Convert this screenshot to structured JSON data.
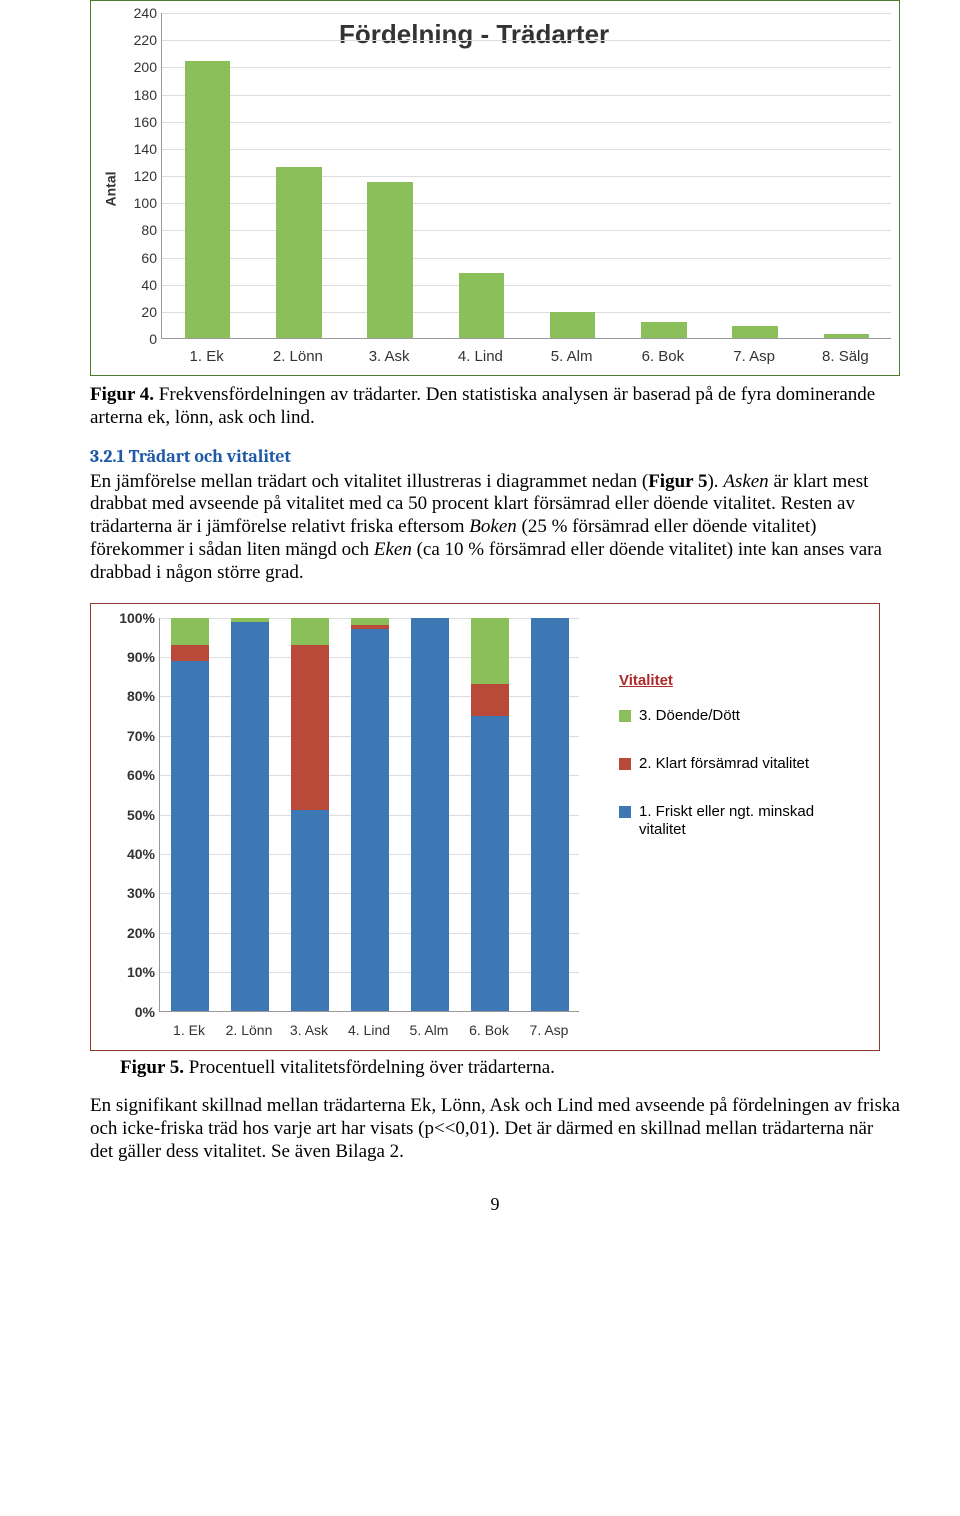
{
  "chart1": {
    "type": "bar",
    "title": "Fördelning - Trädarter",
    "ylabel": "Antal",
    "ylim": [
      0,
      240
    ],
    "ytick_step": 20,
    "categories": [
      "1. Ek",
      "2. Lönn",
      "3. Ask",
      "4. Lind",
      "5. Alm",
      "6. Bok",
      "7. Asp",
      "8. Sälg"
    ],
    "values": [
      204,
      126,
      115,
      48,
      19,
      12,
      9,
      3
    ],
    "bar_color": "#8bbf5a",
    "border_color": "#4a7c2e",
    "grid_color": "#dddddd",
    "background_color": "#ffffff"
  },
  "caption1": {
    "label": "Figur 4.",
    "text": " Frekvensfördelningen av trädarter. Den statistiska analysen är baserad på de fyra dominerande arterna ek, lönn, ask och lind."
  },
  "section_heading": "3.2.1 Trädart och vitalitet",
  "para1_a": "En jämförelse mellan trädart och vitalitet illustreras i diagrammet nedan (",
  "para1_b": "Figur 5",
  "para1_c": "). ",
  "para1_d": "Asken",
  "para1_e": " är klart mest drabbat med avseende på vitalitet med ca 50 procent klart försämrad eller döende vitalitet. Resten av trädarterna är i jämförelse relativt friska eftersom ",
  "para1_f": "Boken",
  "para1_g": " (25 % försämrad eller döende vitalitet) förekommer i sådan liten mängd och ",
  "para1_h": "Eken",
  "para1_i": " (ca 10 % försämrad eller döende vitalitet) inte kan anses vara drabbad i någon större grad.",
  "chart2": {
    "type": "stacked_bar_100",
    "border_color": "#8a3b2f",
    "ylim": [
      0,
      100
    ],
    "ytick_step": 10,
    "ytick_suffix": "%",
    "categories": [
      "1. Ek",
      "2. Lönn",
      "3. Ask",
      "4. Lind",
      "5. Alm",
      "6. Bok",
      "7. Asp"
    ],
    "series": [
      {
        "name": "1. Friskt eller ngt. minskad vitalitet",
        "color": "#3d78b5"
      },
      {
        "name": "2. Klart försämrad vitalitet",
        "color": "#b94938"
      },
      {
        "name": "3. Döende/Dött",
        "color": "#8bbf5a"
      }
    ],
    "values": [
      [
        89,
        4,
        7
      ],
      [
        99,
        0,
        1
      ],
      [
        51,
        42,
        7
      ],
      [
        97,
        1,
        2
      ],
      [
        100,
        0,
        0
      ],
      [
        75,
        8,
        17
      ],
      [
        100,
        0,
        0
      ]
    ],
    "legend_title": "Vitalitet",
    "grid_color": "#dddddd",
    "background_color": "#ffffff"
  },
  "caption2": {
    "label": "Figur 5.",
    "text": " Procentuell vitalitetsfördelning över trädarterna."
  },
  "para2": "En signifikant skillnad mellan trädarterna Ek, Lönn, Ask och Lind med avseende på fördelningen av friska och icke-friska träd hos varje art har visats (p<<0,01). Det är därmed en skillnad mellan trädarterna när det gäller dess vitalitet. Se även Bilaga 2.",
  "page_number": "9"
}
